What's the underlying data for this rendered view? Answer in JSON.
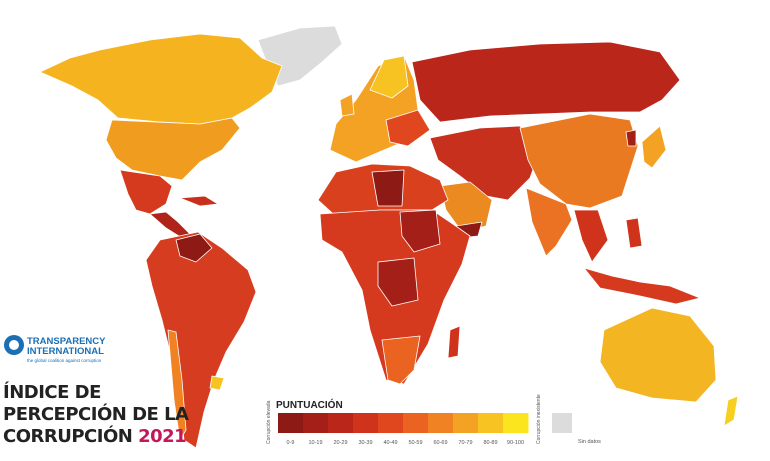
{
  "logo": {
    "name": [
      "TRANSPARENCY",
      "INTERNATIONAL"
    ],
    "tagline": "the global coalition against corruption"
  },
  "title": {
    "lines": [
      "ÍNDICE DE",
      "PERCEPCIÓN DE LA",
      "CORRUPCIÓN"
    ],
    "year": "2021"
  },
  "legend": {
    "title": "PUNTUACIÓN",
    "low_label": "Corrupción elevada",
    "high_label": "Corrupción inexistente",
    "no_data_label": "Sin datos",
    "bins": [
      {
        "label": "0-9",
        "color": "#8e1a16"
      },
      {
        "label": "10-19",
        "color": "#a41f18"
      },
      {
        "label": "20-29",
        "color": "#bb261a"
      },
      {
        "label": "30-39",
        "color": "#d0331c"
      },
      {
        "label": "40-49",
        "color": "#e0471e"
      },
      {
        "label": "50-59",
        "color": "#ea6320"
      },
      {
        "label": "60-69",
        "color": "#f08223"
      },
      {
        "label": "70-79",
        "color": "#f4a224"
      },
      {
        "label": "80-89",
        "color": "#f7c322"
      },
      {
        "label": "90-100",
        "color": "#fae51e"
      }
    ]
  }
}
